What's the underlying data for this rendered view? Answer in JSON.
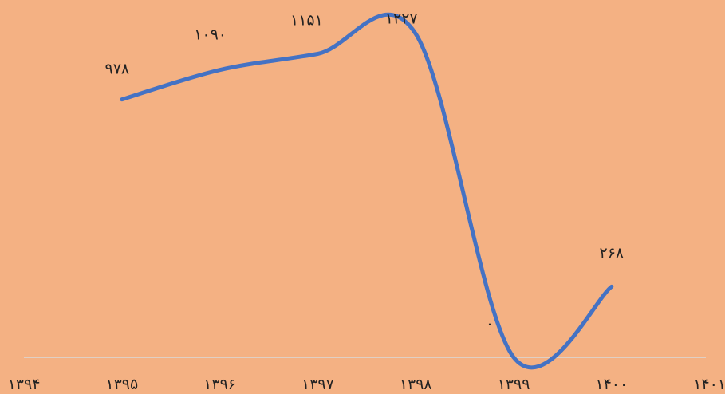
{
  "chart_data": {
    "type": "line",
    "title": "",
    "xlabel": "",
    "ylabel": "",
    "x": [
      1395,
      1396,
      1397,
      1398,
      1399,
      1400
    ],
    "x_tick_labels": [
      "۱۳۹۴",
      "۱۳۹۵",
      "۱۳۹۶",
      "۱۳۹۷",
      "۱۳۹۸",
      "۱۳۹۹",
      "۱۴۰۰",
      "۱۴۰۱"
    ],
    "xlim": [
      1394,
      1401
    ],
    "ylim": [
      -60,
      1300
    ],
    "series": [
      {
        "values": [
          978,
          1090,
          1151,
          1227,
          0,
          268
        ],
        "data_labels": [
          "۹۷۸",
          "۱۰۹۰",
          "۱۱۵۱",
          "۱۲۲۷",
          "۰",
          "۲۶۸"
        ],
        "color": "#4472C4"
      }
    ],
    "grid": false,
    "legend": "none",
    "colors": {
      "background": "#F4B183",
      "axis": "#D9D9D9",
      "line": "#4472C4",
      "text": "#222222"
    }
  }
}
